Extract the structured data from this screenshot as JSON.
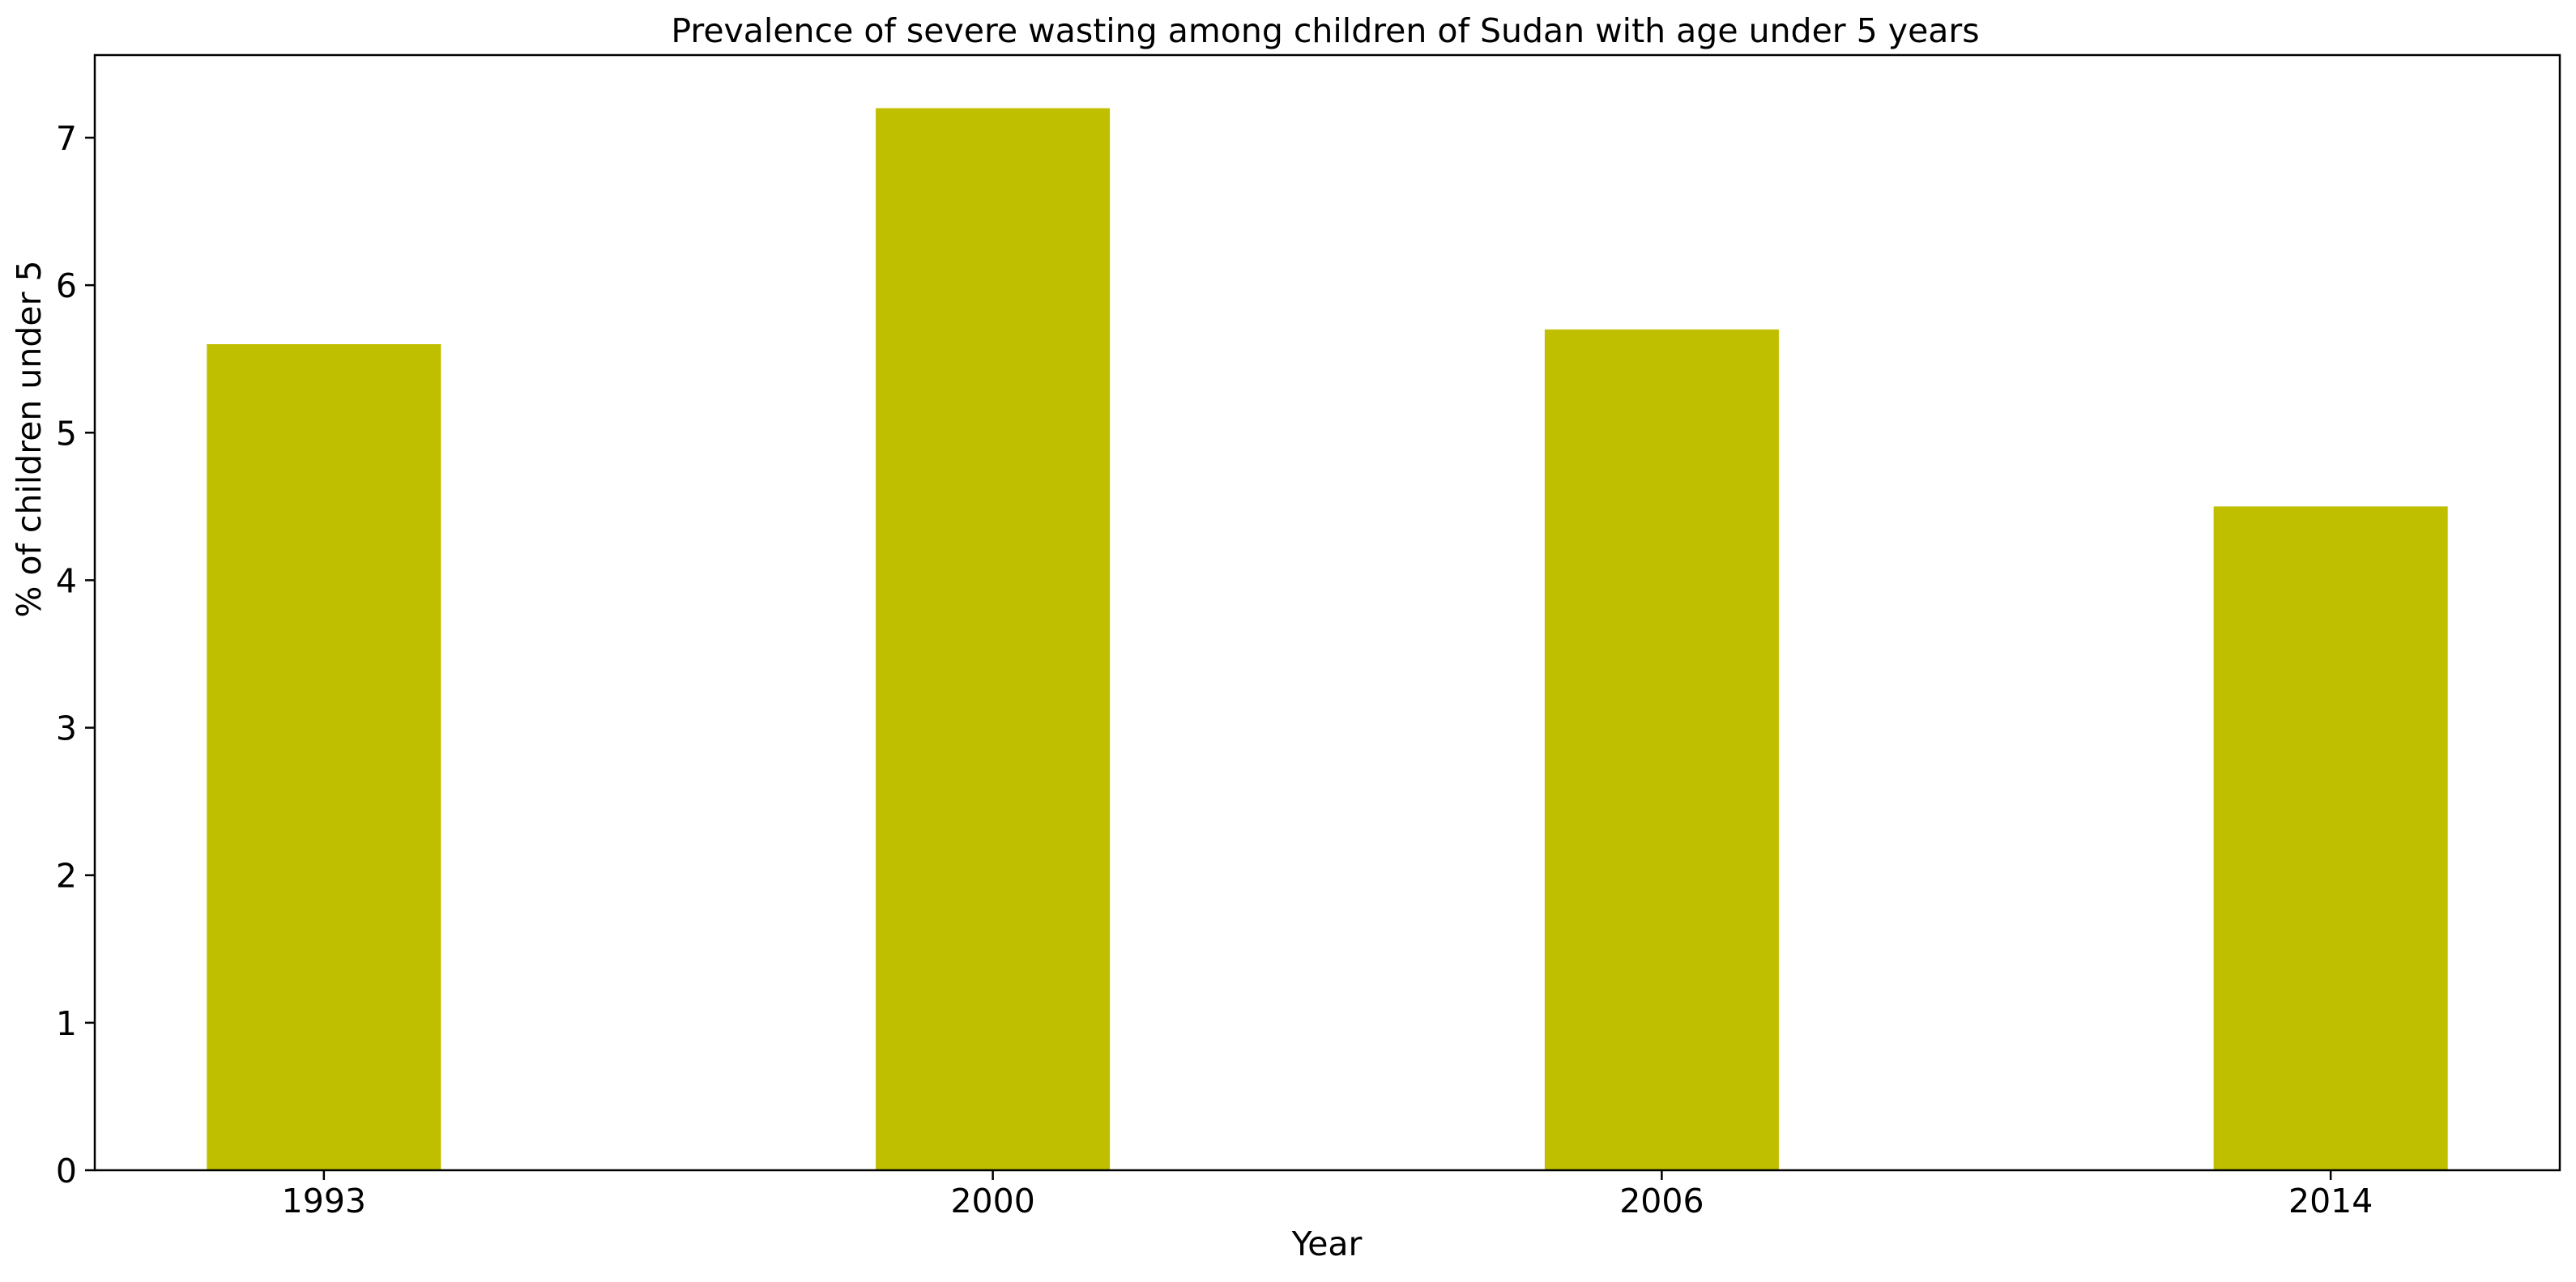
{
  "chart_data": {
    "type": "bar",
    "title": "Prevalence of severe wasting among children of Sudan with age under 5 years",
    "xlabel": "Year",
    "ylabel": "% of children under 5",
    "categories": [
      "1993",
      "2000",
      "2006",
      "2014"
    ],
    "values": [
      5.6,
      7.2,
      5.7,
      4.5
    ],
    "ylim": [
      0,
      7.56
    ],
    "yticks": [
      0,
      1,
      2,
      3,
      4,
      5,
      6,
      7
    ],
    "bar_color": "#bfbf00",
    "grid": false,
    "legend": "none"
  }
}
